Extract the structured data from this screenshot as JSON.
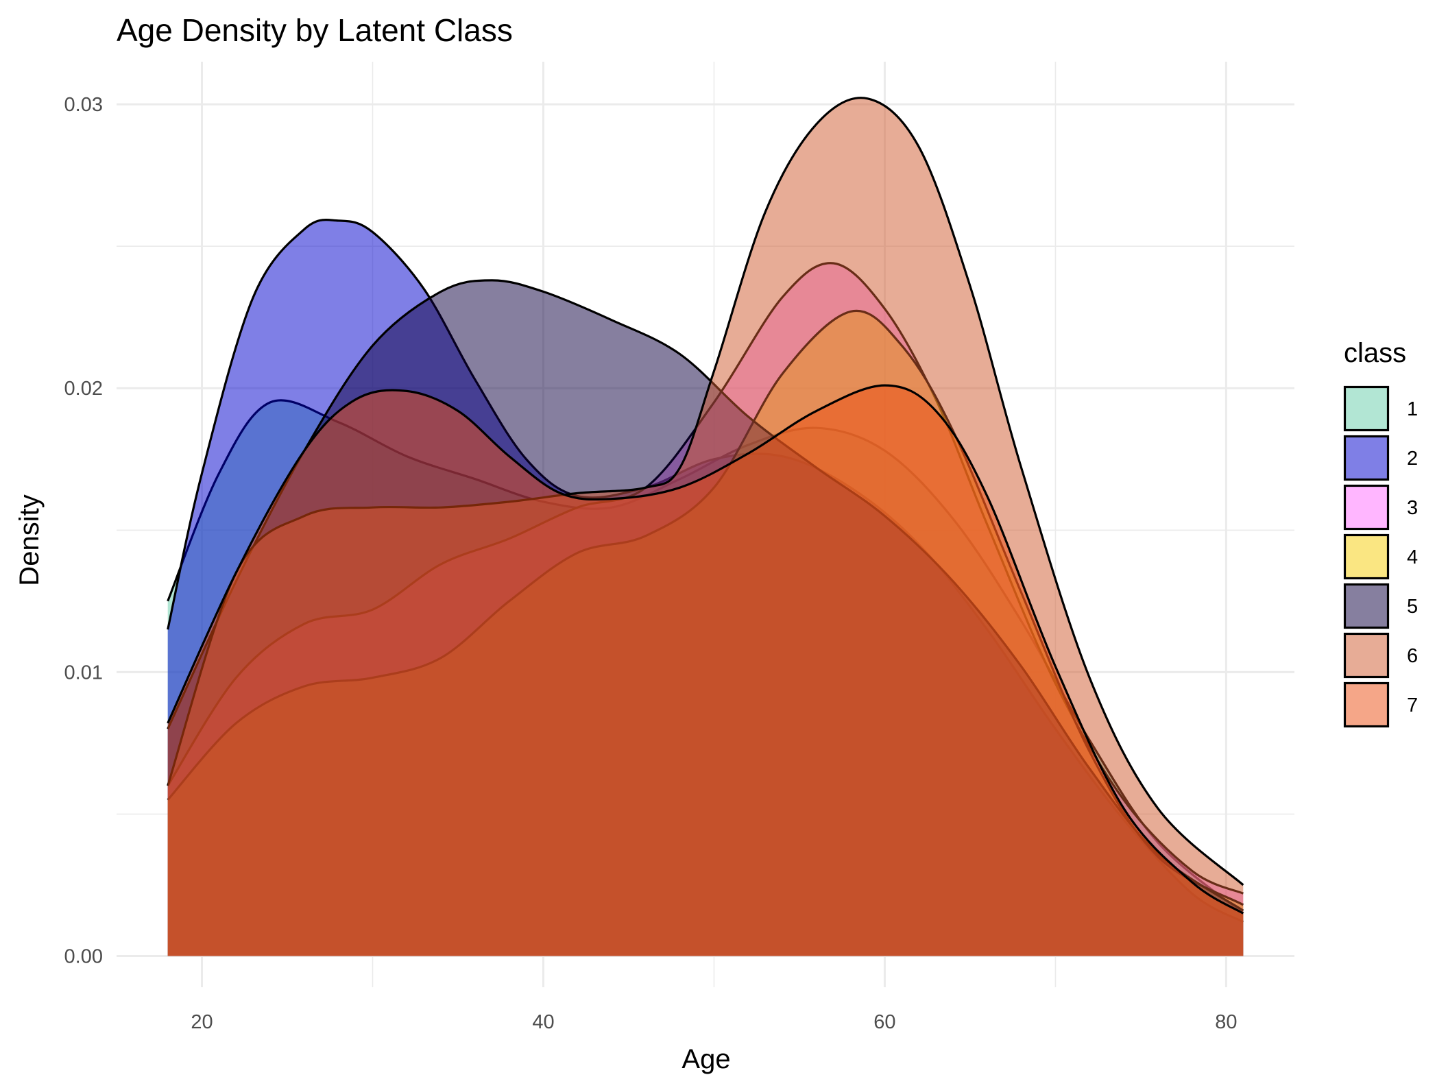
{
  "chart_data": {
    "type": "area",
    "title": "Age Density by Latent Class",
    "xlabel": "Age",
    "ylabel": "Density",
    "xlim": [
      15,
      84
    ],
    "ylim": [
      -0.0011,
      0.0315
    ],
    "x_ticks": [
      20,
      40,
      60,
      80
    ],
    "x_tick_labels": [
      "20",
      "40",
      "60",
      "80"
    ],
    "y_ticks": [
      0,
      0.01,
      0.02,
      0.03
    ],
    "y_tick_labels": [
      "0.00",
      "0.01",
      "0.02",
      "0.03"
    ],
    "grid": true,
    "legend": {
      "title": "class",
      "position": "right"
    },
    "series": [
      {
        "name": "1",
        "color": "#66CDAA",
        "x": [
          18,
          21,
          24,
          28,
          32,
          36,
          40,
          44,
          48,
          52,
          56,
          60,
          64,
          68,
          72,
          76,
          81
        ],
        "y": [
          0.0125,
          0.017,
          0.0195,
          0.0188,
          0.0176,
          0.0168,
          0.016,
          0.0158,
          0.0168,
          0.018,
          0.0186,
          0.0178,
          0.0154,
          0.0118,
          0.0076,
          0.004,
          0.0015
        ]
      },
      {
        "name": "2",
        "color": "#0000CD",
        "x": [
          18,
          20,
          23,
          26,
          28,
          30,
          33,
          36,
          39,
          42,
          46,
          50,
          54,
          58,
          62,
          66,
          70,
          74,
          78,
          81
        ],
        "y": [
          0.0115,
          0.017,
          0.0232,
          0.0256,
          0.0259,
          0.0255,
          0.0235,
          0.0203,
          0.0175,
          0.0162,
          0.0165,
          0.0175,
          0.0176,
          0.0165,
          0.0145,
          0.0115,
          0.008,
          0.0048,
          0.0022,
          0.0012
        ]
      },
      {
        "name": "3",
        "color": "#FF6EFF",
        "x": [
          18,
          22,
          26,
          30,
          34,
          38,
          42,
          46,
          50,
          54,
          57,
          60,
          63,
          66,
          70,
          74,
          78,
          81
        ],
        "y": [
          0.006,
          0.0098,
          0.0117,
          0.0122,
          0.0138,
          0.0147,
          0.0158,
          0.0165,
          0.0195,
          0.0232,
          0.0244,
          0.0228,
          0.0196,
          0.0152,
          0.0096,
          0.0055,
          0.003,
          0.0022
        ]
      },
      {
        "name": "4",
        "color": "#F5CD06",
        "x": [
          18,
          22,
          26,
          30,
          34,
          38,
          42,
          46,
          50,
          54,
          58,
          61,
          64,
          68,
          72,
          76,
          81
        ],
        "y": [
          0.0055,
          0.0082,
          0.0095,
          0.0098,
          0.0105,
          0.0125,
          0.0142,
          0.0148,
          0.0165,
          0.0205,
          0.0227,
          0.0215,
          0.0185,
          0.0128,
          0.0072,
          0.0035,
          0.0018
        ]
      },
      {
        "name": "5",
        "color": "#0E003F",
        "x": [
          18,
          22,
          26,
          30,
          34,
          37,
          40,
          44,
          48,
          52,
          56,
          60,
          64,
          68,
          72,
          76,
          81
        ],
        "y": [
          0.008,
          0.0132,
          0.0178,
          0.0215,
          0.0234,
          0.0238,
          0.0234,
          0.0224,
          0.0212,
          0.019,
          0.0172,
          0.0155,
          0.0132,
          0.0102,
          0.0066,
          0.0036,
          0.0016
        ]
      },
      {
        "name": "6",
        "color": "#D05A2E",
        "x": [
          18,
          22,
          26,
          30,
          34,
          38,
          42,
          46,
          48,
          50,
          53,
          56,
          59,
          62,
          65,
          68,
          72,
          76,
          81
        ],
        "y": [
          0.006,
          0.0135,
          0.0155,
          0.0158,
          0.0158,
          0.016,
          0.0163,
          0.0165,
          0.0172,
          0.0206,
          0.0262,
          0.0293,
          0.0302,
          0.0285,
          0.0236,
          0.0172,
          0.0098,
          0.0052,
          0.0025
        ]
      },
      {
        "name": "7",
        "color": "#EB4D12",
        "x": [
          18,
          22,
          26,
          29,
          32,
          35,
          38,
          41,
          44,
          48,
          52,
          56,
          60,
          63,
          66,
          70,
          74,
          78,
          81
        ],
        "y": [
          0.0082,
          0.0135,
          0.0178,
          0.0196,
          0.0199,
          0.0192,
          0.0176,
          0.0163,
          0.0161,
          0.0165,
          0.0177,
          0.0192,
          0.0201,
          0.0192,
          0.0162,
          0.0102,
          0.0052,
          0.0026,
          0.0015
        ]
      }
    ]
  }
}
